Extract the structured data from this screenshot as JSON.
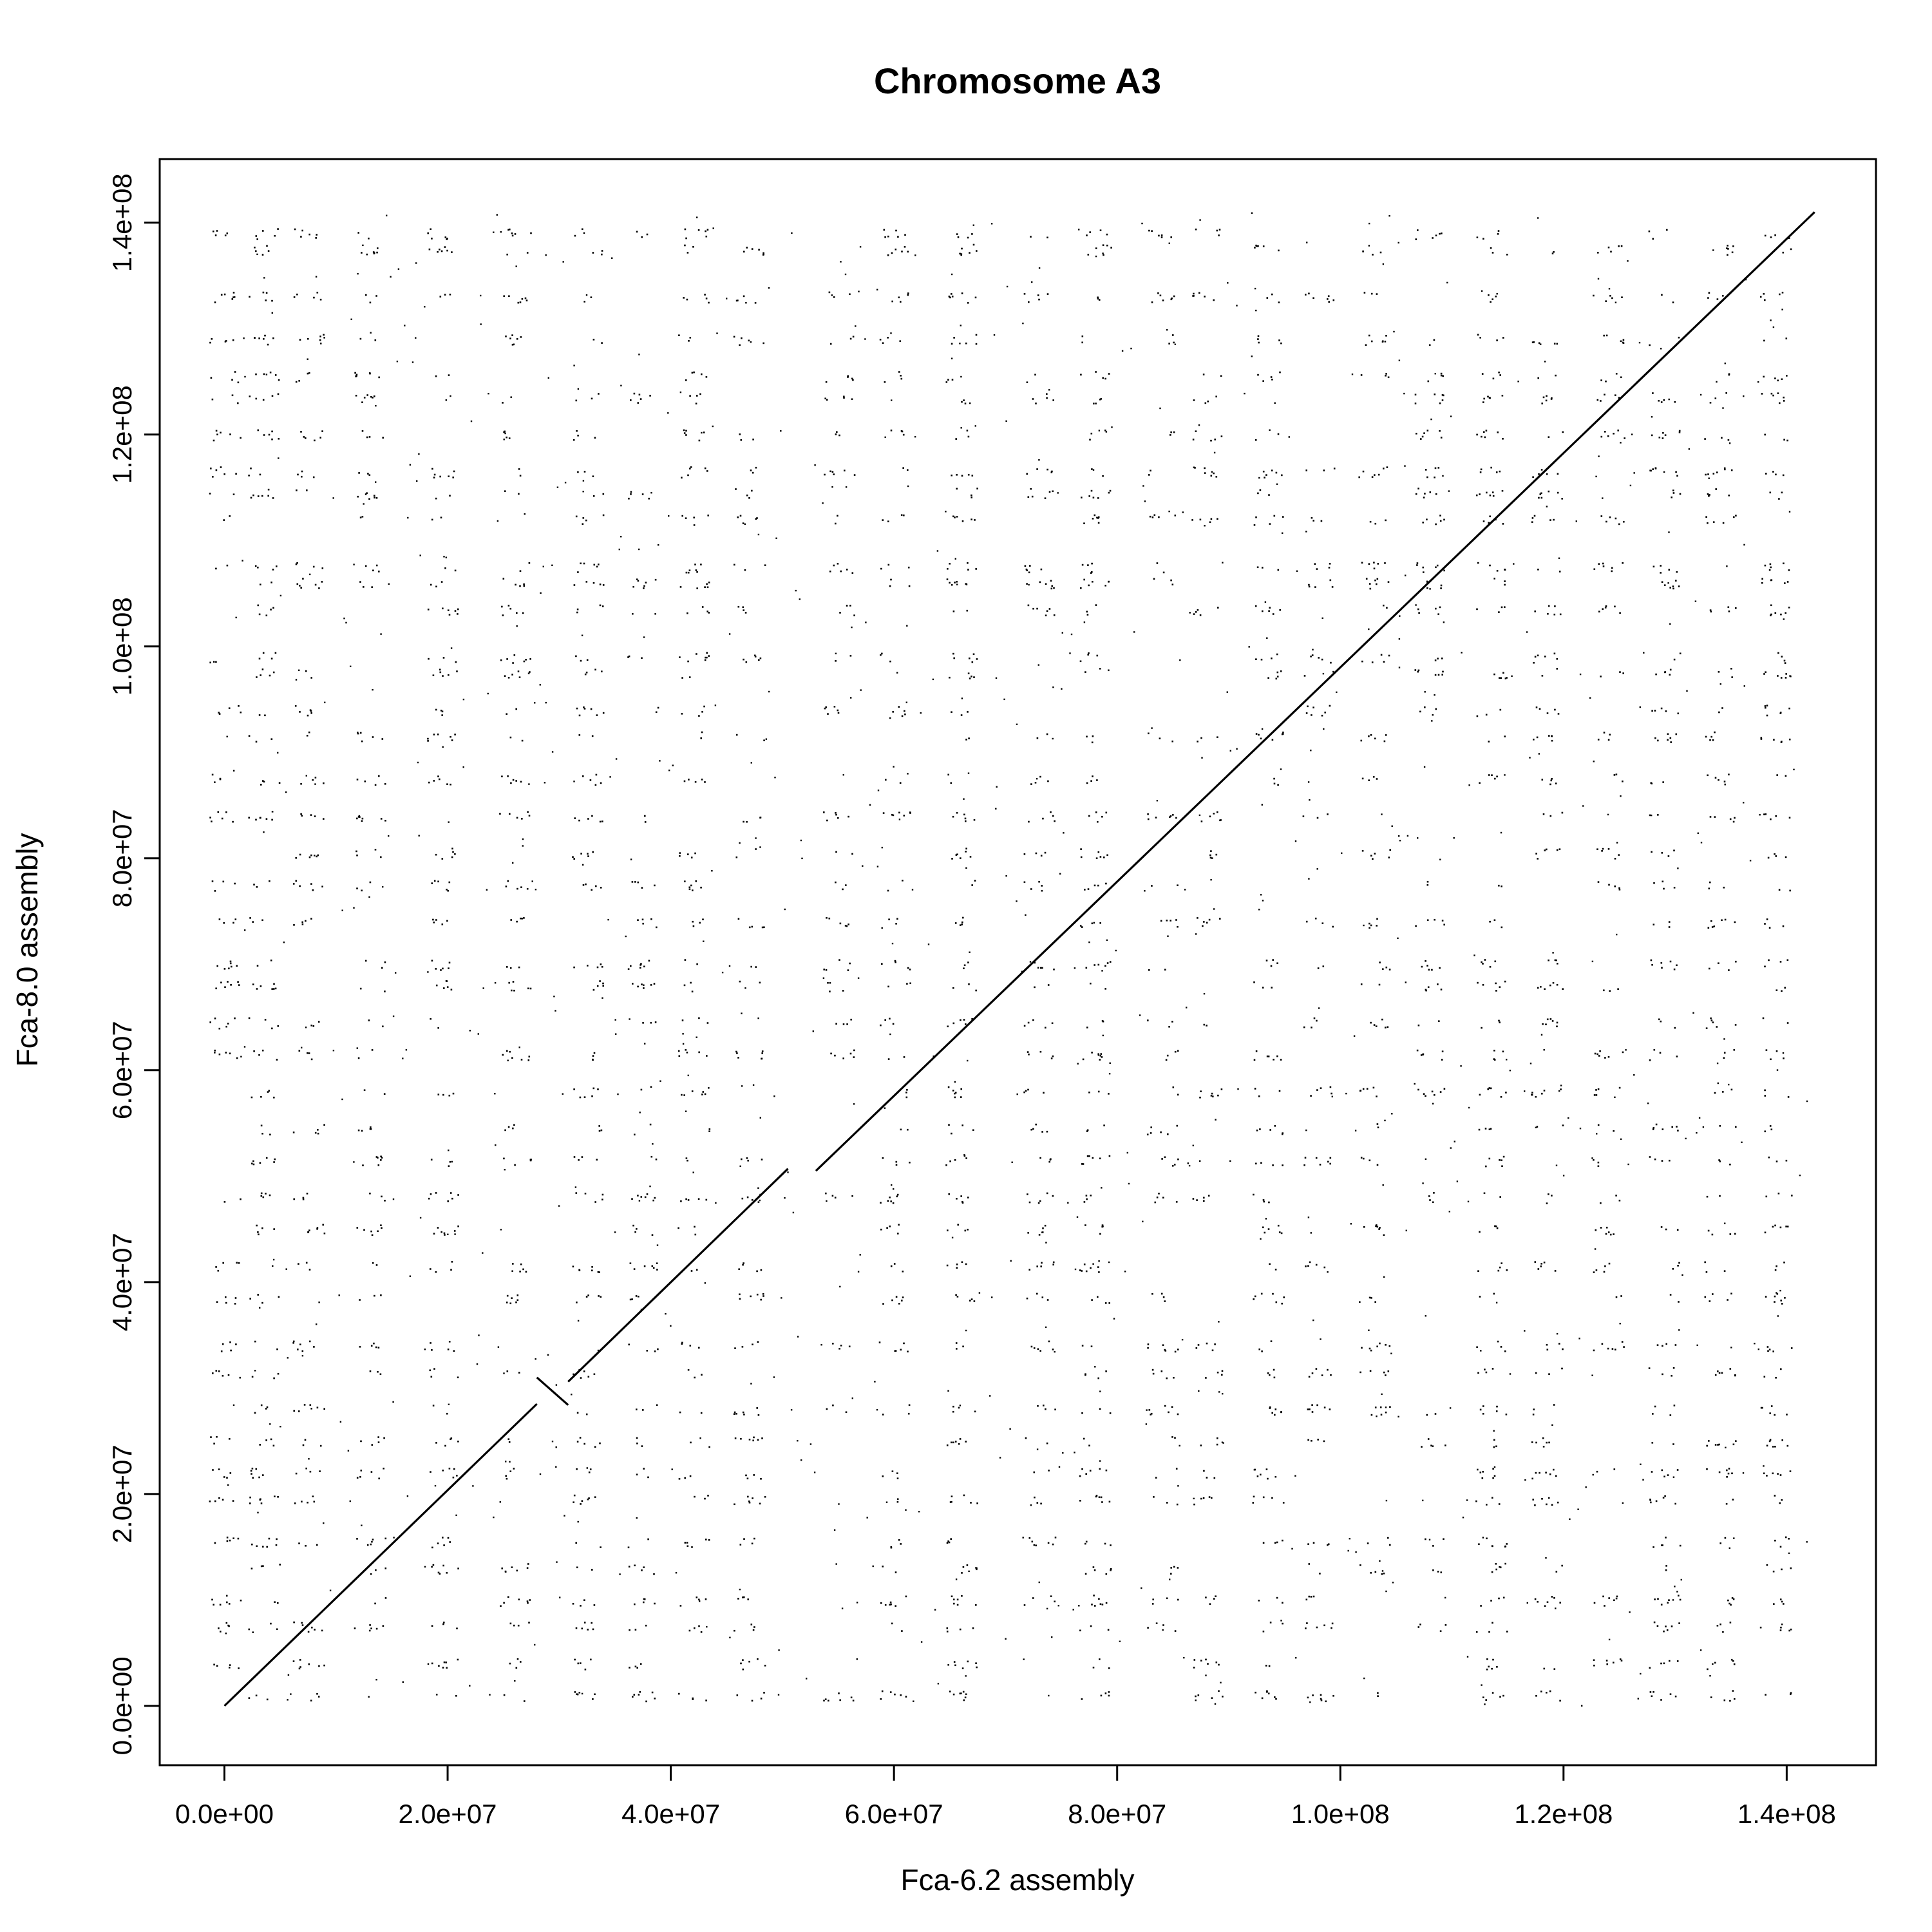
{
  "chart_data": {
    "type": "scatter",
    "title": "Chromosome A3",
    "xlabel": "Fca-6.2 assembly",
    "ylabel": "Fca-8.0 assembly",
    "xlim": [
      -5800000,
      148000000
    ],
    "ylim": [
      -5600000,
      146000000
    ],
    "x_ticks": [
      {
        "value": 0,
        "label": "0.0e+00"
      },
      {
        "value": 20000000,
        "label": "2.0e+07"
      },
      {
        "value": 40000000,
        "label": "4.0e+07"
      },
      {
        "value": 60000000,
        "label": "6.0e+07"
      },
      {
        "value": 80000000,
        "label": "8.0e+07"
      },
      {
        "value": 100000000,
        "label": "1.0e+08"
      },
      {
        "value": 120000000,
        "label": "1.2e+08"
      },
      {
        "value": 140000000,
        "label": "1.4e+08"
      }
    ],
    "y_ticks": [
      {
        "value": 0,
        "label": "0.0e+00"
      },
      {
        "value": 20000000,
        "label": "2.0e+07"
      },
      {
        "value": 40000000,
        "label": "4.0e+07"
      },
      {
        "value": 60000000,
        "label": "6.0e+07"
      },
      {
        "value": 80000000,
        "label": "8.0e+07"
      },
      {
        "value": 100000000,
        "label": "1.0e+08"
      },
      {
        "value": 120000000,
        "label": "1.2e+08"
      },
      {
        "value": 140000000,
        "label": "1.4e+08"
      }
    ],
    "grid": false,
    "legend": "none",
    "colors": {
      "points": "#000000",
      "background": "#ffffff"
    },
    "alignment_segments": [
      {
        "x": [
          0,
          28000000
        ],
        "y": [
          0,
          28500000
        ]
      },
      {
        "x": [
          28000000,
          30800000
        ],
        "y": [
          31000000,
          28400000
        ]
      },
      {
        "x": [
          30800000,
          50500000
        ],
        "y": [
          30600000,
          50700000
        ]
      },
      {
        "x": [
          53000000,
          142500000
        ],
        "y": [
          50500000,
          141000000
        ]
      }
    ],
    "scatter_note": "dense background of low-identity repeat matches across the whole plot",
    "scatter_column_centers_x": [
      0,
      3500000,
      7500000,
      13000000,
      19500000,
      26000000,
      32500000,
      37500000,
      42000000,
      47000000,
      55000000,
      60000000,
      66000000,
      73000000,
      78000000,
      84000000,
      88000000,
      93500000,
      98000000,
      103000000,
      108000000,
      113500000,
      118500000,
      124000000,
      129000000,
      134000000,
      139000000
    ],
    "scatter_row_centers_y": [
      1000000,
      4000000,
      7500000,
      10000000,
      13000000,
      15500000,
      19500000,
      22000000,
      25000000,
      28000000,
      31500000,
      34000000,
      38500000,
      41500000,
      45000000,
      48000000,
      51500000,
      54500000,
      58000000,
      61500000,
      64500000,
      68000000,
      70000000,
      74000000,
      77500000,
      80500000,
      84000000,
      87500000,
      91500000,
      94000000,
      97500000,
      99000000,
      103500000,
      106000000,
      107500000,
      112000000,
      114500000,
      116500000,
      120000000,
      123500000,
      125500000,
      129000000,
      133000000,
      137500000,
      139000000
    ]
  }
}
